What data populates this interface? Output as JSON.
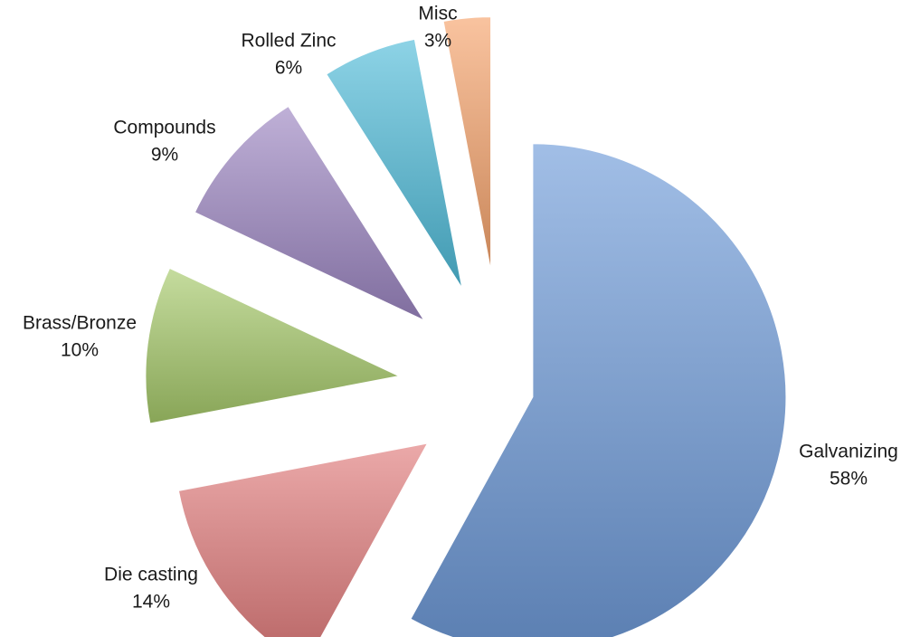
{
  "chart_data": {
    "type": "pie",
    "title": "",
    "slices": [
      {
        "label": "Galvanizing",
        "value": 58,
        "value_label": "58%",
        "color": "#6f9bd9"
      },
      {
        "label": "Die casting",
        "value": 14,
        "value_label": "14%",
        "color": "#e07b7b"
      },
      {
        "label": "Brass/Bronze",
        "value": 10,
        "value_label": "10%",
        "color": "#a6c96a"
      },
      {
        "label": "Compounds",
        "value": 9,
        "value_label": "9%",
        "color": "#9c86c2"
      },
      {
        "label": "Rolled Zinc",
        "value": 6,
        "value_label": "6%",
        "color": "#4fbcd9"
      },
      {
        "label": "Misc",
        "value": 3,
        "value_label": "3%",
        "color": "#f5a36c"
      }
    ],
    "exploded": true,
    "legend": "none"
  }
}
